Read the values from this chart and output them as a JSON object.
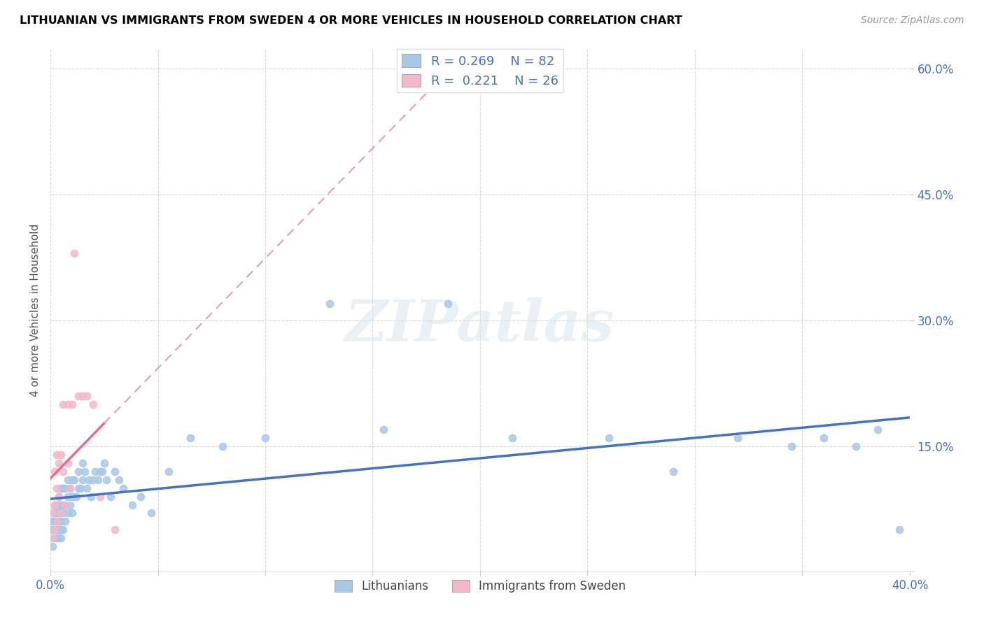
{
  "title": "LITHUANIAN VS IMMIGRANTS FROM SWEDEN 4 OR MORE VEHICLES IN HOUSEHOLD CORRELATION CHART",
  "source": "Source: ZipAtlas.com",
  "ylabel": "4 or more Vehicles in Household",
  "x_min": 0.0,
  "x_max": 0.4,
  "y_min": 0.0,
  "y_max": 0.625,
  "x_ticks": [
    0.0,
    0.05,
    0.1,
    0.15,
    0.2,
    0.25,
    0.3,
    0.35,
    0.4
  ],
  "x_tick_labels": [
    "0.0%",
    "",
    "",
    "",
    "",
    "",
    "",
    "",
    "40.0%"
  ],
  "y_ticks": [
    0.0,
    0.15,
    0.3,
    0.45,
    0.6
  ],
  "y_tick_labels": [
    "",
    "15.0%",
    "30.0%",
    "45.0%",
    "60.0%"
  ],
  "blue_R": "0.269",
  "blue_N": "82",
  "pink_R": "0.221",
  "pink_N": "26",
  "blue_color": "#a8c8e8",
  "pink_color": "#f4b8c8",
  "blue_line_color": "#4472c4",
  "pink_line_color": "#e07090",
  "pink_dash_color": "#e0a0b8",
  "watermark": "ZIPatlas",
  "blue_scatter_x": [
    0.001,
    0.001,
    0.001,
    0.002,
    0.002,
    0.002,
    0.002,
    0.002,
    0.003,
    0.003,
    0.003,
    0.003,
    0.003,
    0.004,
    0.004,
    0.004,
    0.004,
    0.004,
    0.004,
    0.005,
    0.005,
    0.005,
    0.005,
    0.005,
    0.005,
    0.006,
    0.006,
    0.006,
    0.006,
    0.007,
    0.007,
    0.007,
    0.008,
    0.008,
    0.008,
    0.009,
    0.009,
    0.01,
    0.01,
    0.01,
    0.011,
    0.011,
    0.012,
    0.013,
    0.013,
    0.014,
    0.015,
    0.015,
    0.016,
    0.017,
    0.018,
    0.019,
    0.02,
    0.021,
    0.022,
    0.023,
    0.024,
    0.025,
    0.026,
    0.028,
    0.03,
    0.032,
    0.034,
    0.038,
    0.042,
    0.047,
    0.055,
    0.065,
    0.08,
    0.1,
    0.13,
    0.155,
    0.185,
    0.215,
    0.26,
    0.29,
    0.32,
    0.345,
    0.36,
    0.375,
    0.385,
    0.395
  ],
  "blue_scatter_y": [
    0.03,
    0.05,
    0.06,
    0.04,
    0.05,
    0.06,
    0.07,
    0.08,
    0.04,
    0.05,
    0.06,
    0.07,
    0.08,
    0.04,
    0.05,
    0.06,
    0.07,
    0.08,
    0.09,
    0.04,
    0.05,
    0.06,
    0.07,
    0.08,
    0.1,
    0.05,
    0.07,
    0.08,
    0.1,
    0.06,
    0.08,
    0.1,
    0.07,
    0.09,
    0.11,
    0.08,
    0.1,
    0.07,
    0.09,
    0.11,
    0.09,
    0.11,
    0.09,
    0.1,
    0.12,
    0.1,
    0.11,
    0.13,
    0.12,
    0.1,
    0.11,
    0.09,
    0.11,
    0.12,
    0.11,
    0.12,
    0.12,
    0.13,
    0.11,
    0.09,
    0.12,
    0.11,
    0.1,
    0.08,
    0.09,
    0.07,
    0.12,
    0.16,
    0.15,
    0.16,
    0.32,
    0.17,
    0.32,
    0.16,
    0.16,
    0.12,
    0.16,
    0.15,
    0.16,
    0.15,
    0.17,
    0.05
  ],
  "pink_scatter_x": [
    0.001,
    0.001,
    0.002,
    0.002,
    0.002,
    0.003,
    0.003,
    0.003,
    0.004,
    0.004,
    0.005,
    0.005,
    0.006,
    0.006,
    0.007,
    0.008,
    0.008,
    0.009,
    0.01,
    0.011,
    0.013,
    0.015,
    0.017,
    0.02,
    0.023,
    0.03
  ],
  "pink_scatter_y": [
    0.04,
    0.07,
    0.05,
    0.08,
    0.12,
    0.06,
    0.1,
    0.14,
    0.09,
    0.13,
    0.07,
    0.14,
    0.12,
    0.2,
    0.08,
    0.13,
    0.2,
    0.1,
    0.2,
    0.38,
    0.21,
    0.21,
    0.21,
    0.2,
    0.09,
    0.05
  ]
}
